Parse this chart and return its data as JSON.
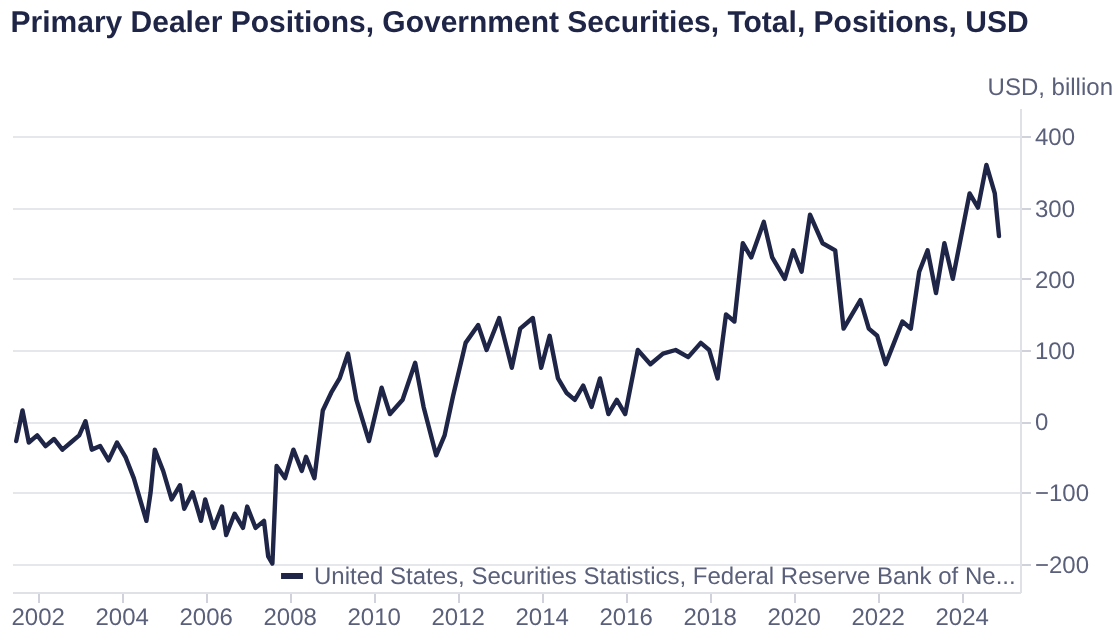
{
  "chart_data": {
    "type": "line",
    "title": "Primary Dealer Positions, Government Securities, Total, Positions, USD",
    "ylabel": "USD, billion",
    "x": [
      2001.5,
      2001.65,
      2001.8,
      2002.0,
      2002.2,
      2002.4,
      2002.6,
      2002.8,
      2003.0,
      2003.15,
      2003.3,
      2003.5,
      2003.7,
      2003.9,
      2004.1,
      2004.3,
      2004.5,
      2004.6,
      2004.7,
      2004.8,
      2005.0,
      2005.2,
      2005.4,
      2005.5,
      2005.7,
      2005.9,
      2006.0,
      2006.2,
      2006.4,
      2006.5,
      2006.7,
      2006.9,
      2007.0,
      2007.2,
      2007.4,
      2007.5,
      2007.6,
      2007.7,
      2007.9,
      2008.1,
      2008.3,
      2008.4,
      2008.6,
      2008.8,
      2009.0,
      2009.2,
      2009.4,
      2009.6,
      2009.9,
      2010.2,
      2010.4,
      2010.7,
      2011.0,
      2011.2,
      2011.5,
      2011.7,
      2011.9,
      2012.2,
      2012.5,
      2012.7,
      2013.0,
      2013.3,
      2013.5,
      2013.8,
      2014.0,
      2014.2,
      2014.4,
      2014.6,
      2014.8,
      2015.0,
      2015.2,
      2015.4,
      2015.6,
      2015.8,
      2016.0,
      2016.3,
      2016.6,
      2016.9,
      2017.2,
      2017.5,
      2017.8,
      2018.0,
      2018.2,
      2018.4,
      2018.6,
      2018.8,
      2019.0,
      2019.3,
      2019.5,
      2019.8,
      2020.0,
      2020.2,
      2020.4,
      2020.7,
      2021.0,
      2021.2,
      2021.4,
      2021.6,
      2021.8,
      2022.0,
      2022.2,
      2022.4,
      2022.6,
      2022.8,
      2023.0,
      2023.2,
      2023.4,
      2023.6,
      2023.8,
      2024.0,
      2024.2,
      2024.4,
      2024.6,
      2024.8,
      2024.9
    ],
    "series": [
      {
        "name": "United States, Securities Statistics, Federal Reserve Bank of Ne...",
        "color": "#1f2547",
        "values": [
          -28,
          15,
          -30,
          -20,
          -35,
          -25,
          -40,
          -30,
          -20,
          0,
          -40,
          -35,
          -55,
          -30,
          -50,
          -80,
          -120,
          -140,
          -100,
          -40,
          -70,
          -110,
          -90,
          -123,
          -100,
          -140,
          -110,
          -150,
          -120,
          -160,
          -130,
          -150,
          -120,
          -150,
          -140,
          -190,
          -200,
          -63,
          -80,
          -40,
          -70,
          -50,
          -80,
          15,
          40,
          60,
          95,
          30,
          -28,
          47,
          10,
          30,
          82,
          20,
          -48,
          -20,
          35,
          110,
          135,
          100,
          145,
          75,
          130,
          145,
          75,
          120,
          60,
          40,
          30,
          50,
          20,
          60,
          10,
          30,
          10,
          100,
          80,
          95,
          100,
          90,
          110,
          100,
          60,
          150,
          140,
          250,
          230,
          280,
          230,
          200,
          240,
          210,
          290,
          250,
          240,
          130,
          150,
          170,
          130,
          120,
          80,
          110,
          140,
          130,
          210,
          240,
          180,
          250,
          200,
          260,
          320,
          300,
          360,
          320,
          260
        ]
      }
    ],
    "xlim": [
      2001.4,
      2025.4
    ],
    "ylim": [
      -240,
      440
    ],
    "xticks": [
      2002,
      2004,
      2006,
      2008,
      2010,
      2012,
      2014,
      2016,
      2018,
      2020,
      2022,
      2024
    ],
    "yticks": [
      -200,
      -100,
      0,
      100,
      200,
      300,
      400
    ],
    "grid": "y",
    "legend": "bottom right"
  }
}
